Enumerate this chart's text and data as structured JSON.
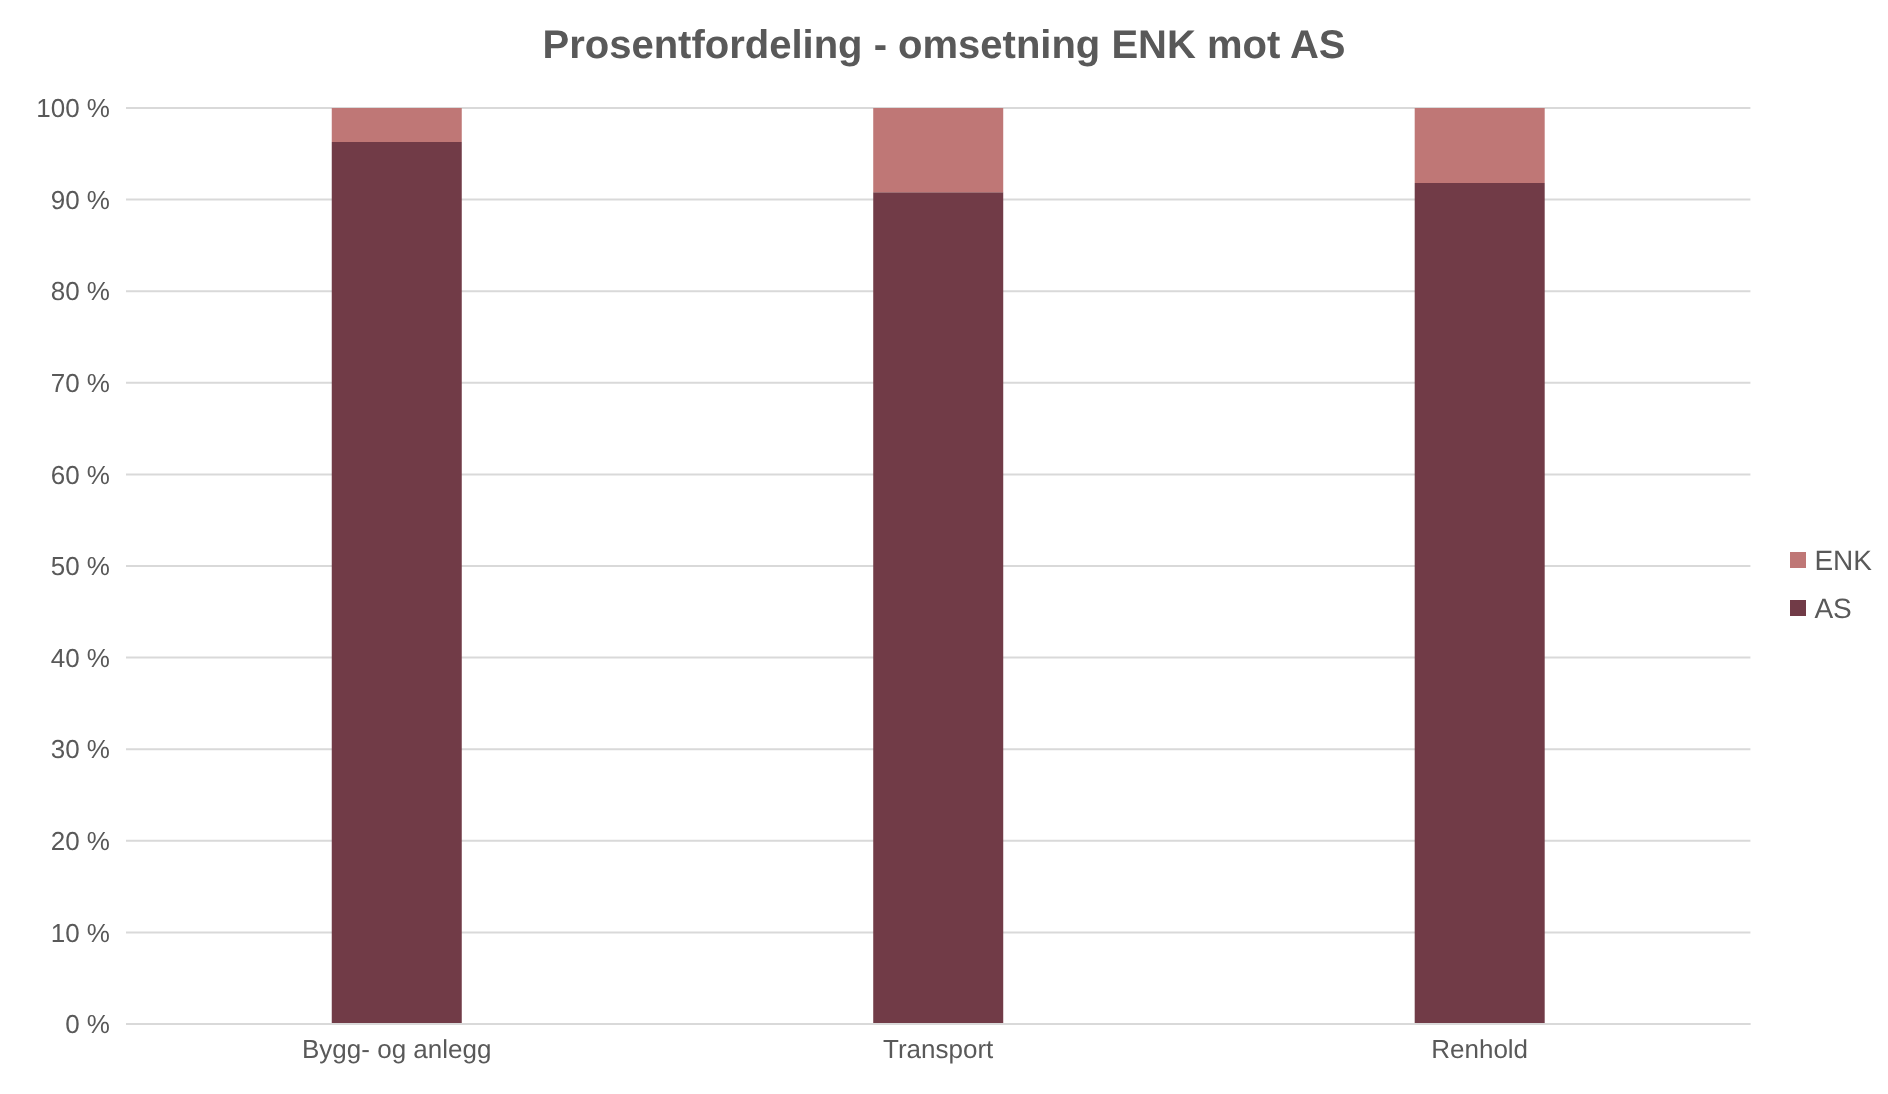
{
  "chart_data": {
    "type": "bar",
    "title": "Prosentfordeling - omsetning ENK mot AS",
    "categories": [
      "Bygg- og anlegg",
      "Transport",
      "Renhold"
    ],
    "stacked": true,
    "series": [
      {
        "name": "AS",
        "color": "#713b47",
        "values": [
          96.3,
          90.8,
          91.8
        ]
      },
      {
        "name": "ENK",
        "color": "#bf7776",
        "values": [
          3.7,
          9.2,
          8.2
        ]
      }
    ],
    "ylim": [
      0,
      100
    ],
    "yticks": [
      {
        "value": 0,
        "label": "0 %"
      },
      {
        "value": 10,
        "label": "10 %"
      },
      {
        "value": 20,
        "label": "20 %"
      },
      {
        "value": 30,
        "label": "30 %"
      },
      {
        "value": 40,
        "label": "40 %"
      },
      {
        "value": 50,
        "label": "50 %"
      },
      {
        "value": 60,
        "label": "60 %"
      },
      {
        "value": 70,
        "label": "70 %"
      },
      {
        "value": 80,
        "label": "80 %"
      },
      {
        "value": 90,
        "label": "90 %"
      },
      {
        "value": 100,
        "label": "100 %"
      }
    ],
    "grid": "y",
    "legend": "right"
  }
}
